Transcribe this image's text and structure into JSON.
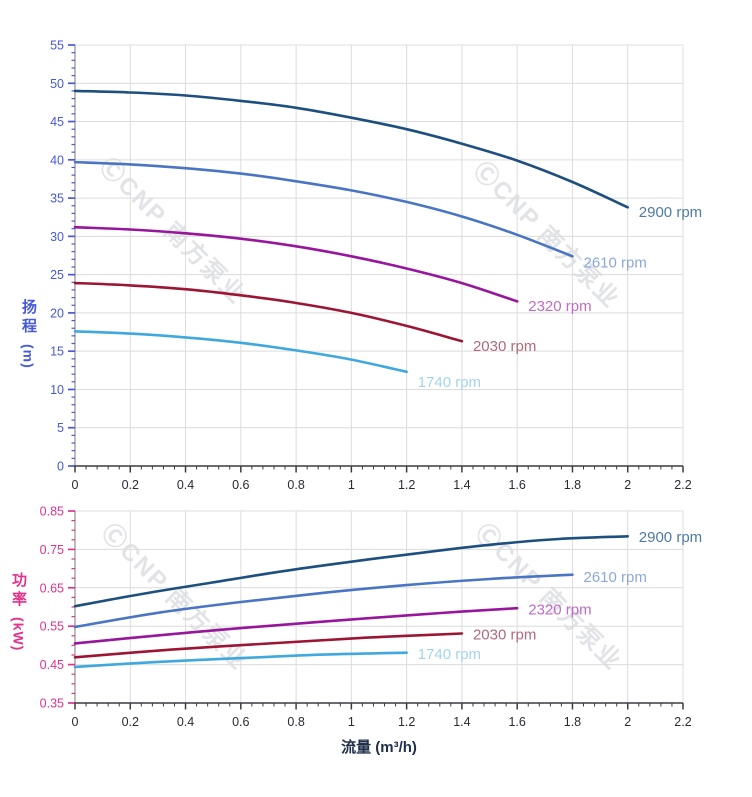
{
  "watermark": {
    "text": "ⒸCNP 南方泵业"
  },
  "chart_data": {
    "type": "line",
    "x_axis": {
      "title": "流量 (m³/h)",
      "min": 0,
      "max": 2.2,
      "major_step": 0.2,
      "minor_step": 0.04,
      "tick_labels": [
        "0",
        "0.2",
        "0.4",
        "0.6",
        "0.8",
        "1",
        "1.2",
        "1.4",
        "1.6",
        "1.8",
        "2",
        "2.2"
      ],
      "tick_color": "#2a2a34",
      "title_color": "#20304a"
    },
    "charts": [
      {
        "id": "head",
        "y_title": "扬程",
        "y_unit": "(m)",
        "axis_color": "#4659d8",
        "y_min": 0,
        "y_max": 55,
        "y_major_step": 5,
        "y_minor_step": 1,
        "y_tick_labels": [
          "0",
          "5",
          "10",
          "15",
          "20",
          "25",
          "30",
          "35",
          "40",
          "45",
          "50",
          "55"
        ],
        "grid": true,
        "legend_position": "end-of-curve",
        "series": [
          {
            "name": "2900 rpm",
            "color": "#1d4f7f",
            "label_color": "#4d7ba3",
            "points": [
              [
                0,
                49
              ],
              [
                0.2,
                48.8
              ],
              [
                0.4,
                48.4
              ],
              [
                0.6,
                47.7
              ],
              [
                0.8,
                46.8
              ],
              [
                1.0,
                45.5
              ],
              [
                1.2,
                44.0
              ],
              [
                1.4,
                42.1
              ],
              [
                1.6,
                39.9
              ],
              [
                1.8,
                37.1
              ],
              [
                2.0,
                33.8
              ]
            ],
            "label_at": [
              2.04,
              33.2
            ]
          },
          {
            "name": "2610 rpm",
            "color": "#4a74c4",
            "label_color": "#8da7da",
            "points": [
              [
                0,
                39.7
              ],
              [
                0.2,
                39.4
              ],
              [
                0.4,
                38.9
              ],
              [
                0.6,
                38.2
              ],
              [
                0.8,
                37.2
              ],
              [
                1.0,
                36.0
              ],
              [
                1.2,
                34.5
              ],
              [
                1.4,
                32.6
              ],
              [
                1.6,
                30.2
              ],
              [
                1.8,
                27.4
              ]
            ],
            "label_at": [
              1.84,
              26.6
            ]
          },
          {
            "name": "2320 rpm",
            "color": "#97169c",
            "label_color": "#c06cc6",
            "points": [
              [
                0,
                31.2
              ],
              [
                0.2,
                30.9
              ],
              [
                0.4,
                30.4
              ],
              [
                0.6,
                29.7
              ],
              [
                0.8,
                28.7
              ],
              [
                1.0,
                27.4
              ],
              [
                1.2,
                25.8
              ],
              [
                1.4,
                23.9
              ],
              [
                1.6,
                21.5
              ]
            ],
            "label_at": [
              1.64,
              20.9
            ]
          },
          {
            "name": "2030 rpm",
            "color": "#9c1634",
            "label_color": "#b06a7a",
            "points": [
              [
                0,
                23.9
              ],
              [
                0.2,
                23.6
              ],
              [
                0.4,
                23.1
              ],
              [
                0.6,
                22.3
              ],
              [
                0.8,
                21.3
              ],
              [
                1.0,
                20.0
              ],
              [
                1.2,
                18.3
              ],
              [
                1.4,
                16.3
              ]
            ],
            "label_at": [
              1.44,
              15.7
            ]
          },
          {
            "name": "1740 rpm",
            "color": "#3fa8de",
            "label_color": "#a5d3ee",
            "points": [
              [
                0,
                17.6
              ],
              [
                0.2,
                17.3
              ],
              [
                0.4,
                16.8
              ],
              [
                0.6,
                16.1
              ],
              [
                0.8,
                15.1
              ],
              [
                1.0,
                13.9
              ],
              [
                1.2,
                12.3
              ]
            ],
            "label_at": [
              1.24,
              11.0
            ]
          }
        ]
      },
      {
        "id": "power",
        "y_title": "功率",
        "y_unit": "(kW)",
        "axis_color": "#e0338c",
        "y_min": 0.35,
        "y_max": 0.85,
        "y_major_step": 0.1,
        "y_minor_step": 0.025,
        "y_tick_labels": [
          "0.35",
          "0.45",
          "0.55",
          "0.65",
          "0.75",
          "0.85"
        ],
        "grid": true,
        "legend_position": "end-of-curve",
        "series": [
          {
            "name": "2900 rpm",
            "color": "#1d4f7f",
            "label_color": "#4d7ba3",
            "points": [
              [
                0,
                0.602
              ],
              [
                0.25,
                0.635
              ],
              [
                0.5,
                0.664
              ],
              [
                0.75,
                0.693
              ],
              [
                1.0,
                0.718
              ],
              [
                1.25,
                0.741
              ],
              [
                1.5,
                0.762
              ],
              [
                1.75,
                0.777
              ],
              [
                2.0,
                0.784
              ]
            ],
            "label_at": [
              2.04,
              0.782
            ]
          },
          {
            "name": "2610 rpm",
            "color": "#4a74c4",
            "label_color": "#8da7da",
            "points": [
              [
                0,
                0.548
              ],
              [
                0.3,
                0.585
              ],
              [
                0.6,
                0.613
              ],
              [
                0.9,
                0.637
              ],
              [
                1.2,
                0.657
              ],
              [
                1.5,
                0.673
              ],
              [
                1.8,
                0.684
              ]
            ],
            "label_at": [
              1.84,
              0.678
            ]
          },
          {
            "name": "2320 rpm",
            "color": "#97169c",
            "label_color": "#c06cc6",
            "points": [
              [
                0,
                0.505
              ],
              [
                0.3,
                0.526
              ],
              [
                0.6,
                0.545
              ],
              [
                0.9,
                0.562
              ],
              [
                1.2,
                0.578
              ],
              [
                1.4,
                0.588
              ],
              [
                1.6,
                0.597
              ]
            ],
            "label_at": [
              1.64,
              0.594
            ]
          },
          {
            "name": "2030 rpm",
            "color": "#9c1634",
            "label_color": "#b06a7a",
            "points": [
              [
                0,
                0.469
              ],
              [
                0.35,
                0.489
              ],
              [
                0.7,
                0.505
              ],
              [
                1.05,
                0.52
              ],
              [
                1.4,
                0.531
              ]
            ],
            "label_at": [
              1.44,
              0.528
            ]
          },
          {
            "name": "1740 rpm",
            "color": "#3fa8de",
            "label_color": "#a5d3ee",
            "points": [
              [
                0,
                0.444
              ],
              [
                0.3,
                0.457
              ],
              [
                0.6,
                0.467
              ],
              [
                0.9,
                0.476
              ],
              [
                1.2,
                0.481
              ]
            ],
            "label_at": [
              1.24,
              0.477
            ]
          }
        ]
      }
    ]
  }
}
